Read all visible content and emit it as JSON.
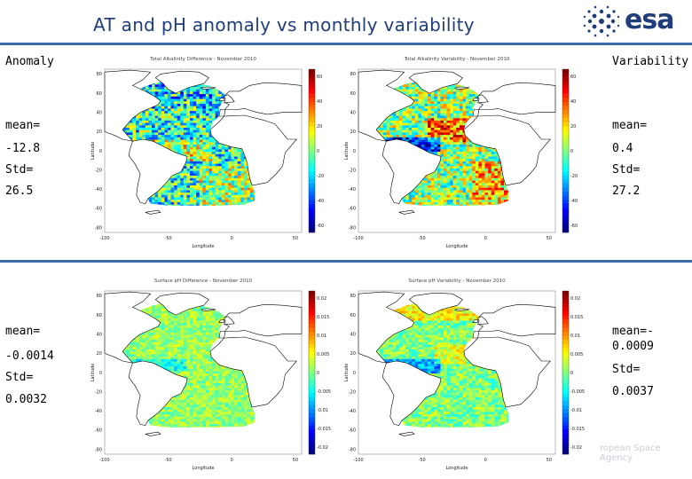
{
  "header": {
    "title": "AT and pH anomaly vs monthly variability",
    "logo_text": "esa"
  },
  "top_left": {
    "heading": "Anomaly",
    "mean_label": "mean=",
    "mean_value": "-12.8",
    "std_label": "Std=",
    "std_value": "26.5"
  },
  "top_right": {
    "heading": "Variability",
    "mean_label": "mean=",
    "mean_value": "0.4",
    "std_label": "Std=",
    "std_value": "27.2"
  },
  "bottom_left": {
    "mean_label": "mean=",
    "mean_value": "-0.0014",
    "std_label": "Std=",
    "std_value": "0.0032"
  },
  "bottom_right": {
    "mean_label": "mean=-",
    "mean_value": "0.0009",
    "std_label": "Std=",
    "std_value": "0.0037"
  },
  "footer": {
    "text": "ropean Space Agency"
  },
  "panels": [
    {
      "id": "p1",
      "title": "Total Alkalinity Difference - November 2010",
      "xlabel": "Longitude",
      "ylabel": "Latitude",
      "xticks": [
        "-100",
        "-50",
        "0",
        "50"
      ],
      "yticks": [
        "80",
        "60",
        "40",
        "20",
        "0",
        "-20",
        "-40",
        "-60",
        "-80"
      ],
      "cticks": [
        "60",
        "40",
        "20",
        "0",
        "-20",
        "-40",
        "-60"
      ],
      "field": "anomaly"
    },
    {
      "id": "p2",
      "title": "Total Alkalinity Variability - November 2010",
      "xlabel": "Longitude",
      "ylabel": "Latitude",
      "xticks": [
        "-100",
        "-50",
        "0",
        "50"
      ],
      "yticks": [
        "80",
        "60",
        "40",
        "20",
        "0",
        "-20",
        "-40",
        "-60",
        "-80"
      ],
      "cticks": [
        "60",
        "40",
        "20",
        "0",
        "-20",
        "-40",
        "-60"
      ],
      "field": "variability"
    },
    {
      "id": "p3",
      "title": "Surface pH Difference - November 2010",
      "xlabel": "Longitude",
      "ylabel": "Latitude",
      "xticks": [
        "-100",
        "-50",
        "0",
        "50"
      ],
      "yticks": [
        "80",
        "60",
        "40",
        "20",
        "0",
        "-20",
        "-40",
        "-60",
        "-80"
      ],
      "cticks": [
        "0.02",
        "0.015",
        "0.01",
        "0.005",
        "0",
        "-0.005",
        "-0.01",
        "-0.015",
        "-0.02"
      ],
      "field": "ph_anomaly"
    },
    {
      "id": "p4",
      "title": "Surface pH Variability - November 2010",
      "xlabel": "Longitude",
      "ylabel": "Latitude",
      "xticks": [
        "-100",
        "-50",
        "0",
        "50"
      ],
      "yticks": [
        "80",
        "60",
        "40",
        "20",
        "0",
        "-20",
        "-40",
        "-60",
        "-80"
      ],
      "cticks": [
        "0.02",
        "0.015",
        "0.01",
        "0.005",
        "0",
        "-0.005",
        "-0.01",
        "-0.015",
        "-0.02"
      ],
      "field": "ph_variability"
    }
  ],
  "colors": {
    "title_blue": "#1f3d7a",
    "rule_blue": "#3a6aa8"
  }
}
